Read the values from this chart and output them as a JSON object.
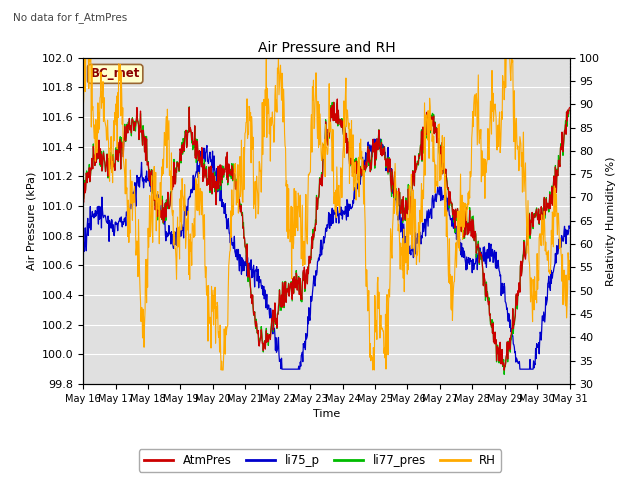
{
  "title": "Air Pressure and RH",
  "subtitle": "No data for f_AtmPres",
  "box_label": "BC_met",
  "xlabel": "Time",
  "ylabel_left": "Air Pressure (kPa)",
  "ylabel_right": "Relativity Humidity (%)",
  "ylim_left": [
    99.8,
    102.0
  ],
  "ylim_right": [
    30,
    100
  ],
  "yticks_left": [
    99.8,
    100.0,
    100.2,
    100.4,
    100.6,
    100.8,
    101.0,
    101.2,
    101.4,
    101.6,
    101.8,
    102.0
  ],
  "yticks_right": [
    30,
    35,
    40,
    45,
    50,
    55,
    60,
    65,
    70,
    75,
    80,
    85,
    90,
    95,
    100
  ],
  "xtick_labels": [
    "May 16",
    "May 17",
    "May 18",
    "May 19",
    "May 20",
    "May 21",
    "May 22",
    "May 23",
    "May 24",
    "May 25",
    "May 26",
    "May 27",
    "May 28",
    "May 29",
    "May 30",
    "May 31"
  ],
  "colors": {
    "AtmPres": "#cc0000",
    "li75_p": "#0000cc",
    "li77_pres": "#00bb00",
    "RH": "#ffaa00"
  },
  "background_color": "#ffffff",
  "plot_bg_color": "#e0e0e0",
  "grid_color": "#ffffff",
  "n_points": 960
}
